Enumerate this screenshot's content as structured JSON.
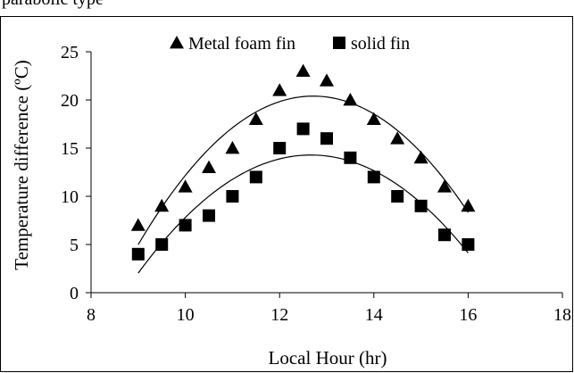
{
  "header": {
    "cropped_text": "parabolic type"
  },
  "chart_data": {
    "type": "scatter",
    "title": "",
    "xlabel": "Local Hour (hr)",
    "ylabel": "Temperature difference (ºC)",
    "xlim": [
      8,
      18
    ],
    "ylim": [
      0,
      25
    ],
    "xticks": [
      "8",
      "10",
      "12",
      "14",
      "16",
      "18"
    ],
    "yticks": [
      "0",
      "5",
      "10",
      "15",
      "20",
      "25"
    ],
    "grid": false,
    "legend_position": "top",
    "series": [
      {
        "name": "Metal foam fin",
        "marker": "triangle",
        "color": "#000000",
        "x": [
          9,
          9.5,
          10,
          10.5,
          11,
          11.5,
          12,
          12.5,
          13,
          13.5,
          14,
          14.5,
          15,
          15.5,
          16
        ],
        "y": [
          7,
          9,
          11,
          13,
          15,
          18,
          21,
          23,
          22,
          20,
          18,
          16,
          14,
          11,
          9
        ],
        "trendline": "polynomial-2"
      },
      {
        "name": "solid fin",
        "marker": "square",
        "color": "#000000",
        "x": [
          9,
          9.5,
          10,
          10.5,
          11,
          11.5,
          12,
          12.5,
          13,
          13.5,
          14,
          14.5,
          15,
          15.5,
          16
        ],
        "y": [
          4,
          5,
          7,
          8,
          10,
          12,
          15,
          17,
          16,
          14,
          12,
          10,
          9,
          6,
          5
        ],
        "trendline": "polynomial-2"
      }
    ]
  }
}
